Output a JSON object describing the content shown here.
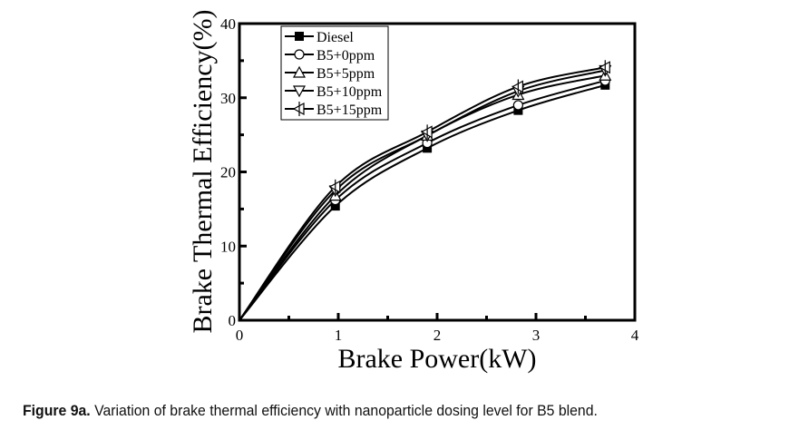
{
  "chart_data": {
    "type": "line",
    "title": "",
    "xlabel": "Brake Power(kW)",
    "ylabel": "Brake Thermal Efficiency(%)",
    "xlim": [
      0,
      4
    ],
    "ylim": [
      0,
      40
    ],
    "xticks": [
      0,
      1,
      2,
      3,
      4
    ],
    "yticks": [
      0,
      10,
      20,
      30,
      40
    ],
    "grid": false,
    "legend_position": "top-left",
    "x": [
      0,
      0.97,
      1.9,
      2.82,
      3.7
    ],
    "series": [
      {
        "name": "Diesel",
        "marker": "filled-square",
        "values": [
          0,
          15.4,
          23.2,
          28.3,
          31.7
        ]
      },
      {
        "name": "B5+0ppm",
        "marker": "open-circle",
        "values": [
          0,
          16.2,
          23.9,
          29.0,
          32.3
        ]
      },
      {
        "name": "B5+5ppm",
        "marker": "open-triangle-up",
        "values": [
          0,
          16.8,
          24.9,
          30.4,
          33.0
        ]
      },
      {
        "name": "B5+10ppm",
        "marker": "open-triangle-down",
        "values": [
          0,
          17.5,
          24.9,
          30.9,
          33.7
        ]
      },
      {
        "name": "B5+15ppm",
        "marker": "half-triangle-left",
        "values": [
          0,
          18.0,
          25.4,
          31.5,
          34.1
        ]
      }
    ]
  },
  "caption": {
    "label": "Figure 9a.",
    "text": " Variation of brake thermal efficiency with nanoparticle dosing level for B5 blend."
  }
}
